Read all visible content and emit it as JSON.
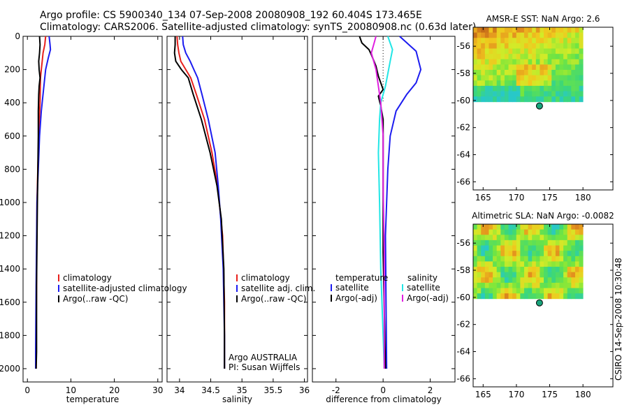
{
  "header": {
    "line1": "Argo profile: CS 5900340_134 07-Sep-2008 20080908_192 60.404S 173.465E",
    "line2": "Climatology: CARS2006. Satellite-adjusted climatology: synTS_20080908.nc (0.63d later)"
  },
  "stamp": "CSIRO 14-Sep-2008 10:30:48",
  "colors": {
    "climatology": "#e8201c",
    "satellite": "#1c1cf0",
    "argo": "#000000",
    "satellite_sal": "#22e6e6",
    "argo_sal": "#e020e0",
    "point": "#19a37b"
  },
  "chart_data": [
    {
      "type": "line",
      "id": "temperature",
      "xlabel": "temperature",
      "xlim": [
        -1,
        31
      ],
      "ylim": [
        2080,
        0
      ],
      "xticks": [
        0,
        10,
        20,
        30
      ],
      "yticks": [
        0,
        200,
        400,
        600,
        800,
        1000,
        1200,
        1400,
        1600,
        1800,
        2000
      ],
      "legend": [
        "climatology",
        "satellite-adjusted climatology",
        "Argo(..raw -QC)"
      ],
      "series": [
        {
          "name": "climatology",
          "color": "#e8201c",
          "x": [
            4.2,
            4.0,
            3.6,
            3.4,
            3.2,
            3.0,
            2.9,
            2.6,
            2.4,
            2.2,
            2.1,
            2.0,
            2.0
          ],
          "y": [
            0,
            50,
            100,
            150,
            200,
            250,
            400,
            600,
            800,
            1000,
            1500,
            1900,
            2000
          ]
        },
        {
          "name": "satellite-adjusted climatology",
          "color": "#1c1cf0",
          "x": [
            5.0,
            5.2,
            5.3,
            4.8,
            4.2,
            3.8,
            3.2,
            2.8,
            2.5,
            2.2,
            2.0,
            1.9,
            1.9
          ],
          "y": [
            0,
            50,
            80,
            130,
            200,
            300,
            450,
            600,
            800,
            1000,
            1500,
            1900,
            2000
          ]
        },
        {
          "name": "Argo(..raw -QC)",
          "color": "#000000",
          "x": [
            2.8,
            2.9,
            2.8,
            2.6,
            2.7,
            2.9,
            2.7,
            2.6,
            2.5,
            2.5,
            2.3,
            2.1,
            2.1,
            2.0
          ],
          "y": [
            0,
            50,
            100,
            150,
            200,
            250,
            300,
            350,
            450,
            600,
            1000,
            1500,
            1900,
            2000
          ]
        }
      ]
    },
    {
      "type": "line",
      "id": "salinity",
      "xlabel": "salinity",
      "xlim": [
        33.8,
        36.05
      ],
      "ylim": [
        2080,
        0
      ],
      "xticks": [
        34,
        34.5,
        35,
        35.5,
        36
      ],
      "legend": [
        "climatology",
        "satellite adj. clim.",
        "Argo(..raw -QC)"
      ],
      "annotation": [
        "Argo AUSTRALIA",
        "PI: Susan Wijffels"
      ],
      "series": [
        {
          "name": "climatology",
          "color": "#e8201c",
          "x": [
            33.96,
            33.97,
            33.99,
            34.02,
            34.1,
            34.18,
            34.27,
            34.4,
            34.52,
            34.61,
            34.69,
            34.72,
            34.72
          ],
          "y": [
            0,
            50,
            100,
            150,
            200,
            250,
            350,
            500,
            700,
            900,
            1200,
            1600,
            2000
          ]
        },
        {
          "name": "satellite adj. clim.",
          "color": "#1c1cf0",
          "x": [
            34.05,
            34.06,
            34.1,
            34.17,
            34.23,
            34.29,
            34.36,
            34.46,
            34.57,
            34.62,
            34.66,
            34.7,
            34.72,
            34.72
          ],
          "y": [
            0,
            50,
            100,
            150,
            200,
            250,
            350,
            500,
            700,
            900,
            1100,
            1400,
            1800,
            2000
          ]
        },
        {
          "name": "Argo(..raw -QC)",
          "color": "#000000",
          "x": [
            33.93,
            33.93,
            33.92,
            33.94,
            34.03,
            34.14,
            34.22,
            34.35,
            34.49,
            34.6,
            34.67,
            34.71,
            34.72,
            34.72
          ],
          "y": [
            0,
            50,
            100,
            150,
            200,
            250,
            350,
            500,
            700,
            900,
            1100,
            1400,
            1800,
            2000
          ]
        }
      ]
    },
    {
      "type": "line",
      "id": "difference",
      "xlabel": "difference from climatology",
      "xlim": [
        -3,
        3.05
      ],
      "ylim": [
        2080,
        0
      ],
      "xticks": [
        -2,
        0,
        2
      ],
      "legend_headers": [
        "temperature",
        "salinity"
      ],
      "legend": [
        "satellite",
        "Argo(-adj)",
        "satellite",
        "Argo(-adj)"
      ],
      "series": [
        {
          "name": "temperature satellite",
          "color": "#1c1cf0",
          "x": [
            0.7,
            1.4,
            1.6,
            1.4,
            1.0,
            0.55,
            0.3,
            0.2,
            0.1,
            0.15
          ],
          "y": [
            0,
            90,
            200,
            280,
            350,
            450,
            600,
            800,
            1200,
            2000
          ]
        },
        {
          "name": "temperature Argo(-adj)",
          "color": "#000000",
          "x": [
            -1.0,
            -0.9,
            -0.6,
            -0.5,
            -0.3,
            -0.2,
            0.0,
            -0.2,
            -0.1,
            0.0,
            0.0,
            0.0,
            0.1
          ],
          "y": [
            0,
            40,
            80,
            110,
            180,
            240,
            320,
            360,
            420,
            500,
            800,
            1300,
            2000
          ]
        },
        {
          "name": "salinity satellite",
          "color": "#22e6e6",
          "x": [
            0.2,
            0.4,
            0.3,
            0.1,
            -0.1,
            -0.15,
            -0.2,
            -0.15,
            -0.1,
            0.0,
            0.05
          ],
          "y": [
            0,
            80,
            150,
            300,
            400,
            500,
            700,
            1000,
            1400,
            1800,
            2000
          ]
        },
        {
          "name": "salinity Argo(-adj)",
          "color": "#e020e0",
          "x": [
            -0.3,
            -0.4,
            -0.5,
            -0.4,
            -0.3,
            -0.2,
            -0.1,
            0.0,
            0.0,
            0.05,
            0.05
          ],
          "y": [
            0,
            50,
            100,
            150,
            200,
            300,
            400,
            600,
            900,
            1300,
            2000
          ]
        }
      ]
    },
    {
      "type": "heatmap",
      "id": "sst_map",
      "title": "AMSR-E SST: NaN Argo: 2.6",
      "xlim": [
        163.5,
        184.5
      ],
      "ylim": [
        -66.6,
        -54.6
      ],
      "data_extent": {
        "lon": [
          163.5,
          180
        ],
        "lat": [
          -60.1,
          -54.6
        ]
      },
      "xticks": [
        165,
        170,
        175,
        180
      ],
      "yticks": [
        -56,
        -58,
        -60,
        -62,
        -64,
        -66
      ],
      "argo_position": {
        "lon": 173.465,
        "lat": -60.404
      }
    },
    {
      "type": "heatmap",
      "id": "sla_map",
      "title": "Altimetric SLA: NaN Argo: -0.0082",
      "xlim": [
        163.5,
        184.5
      ],
      "ylim": [
        -66.6,
        -54.6
      ],
      "data_extent": {
        "lon": [
          163.5,
          180
        ],
        "lat": [
          -60.1,
          -54.6
        ]
      },
      "xticks": [
        165,
        170,
        175,
        180
      ],
      "yticks": [
        -56,
        -58,
        -60,
        -62,
        -64,
        -66
      ],
      "argo_position": {
        "lon": 173.465,
        "lat": -60.404
      }
    }
  ]
}
